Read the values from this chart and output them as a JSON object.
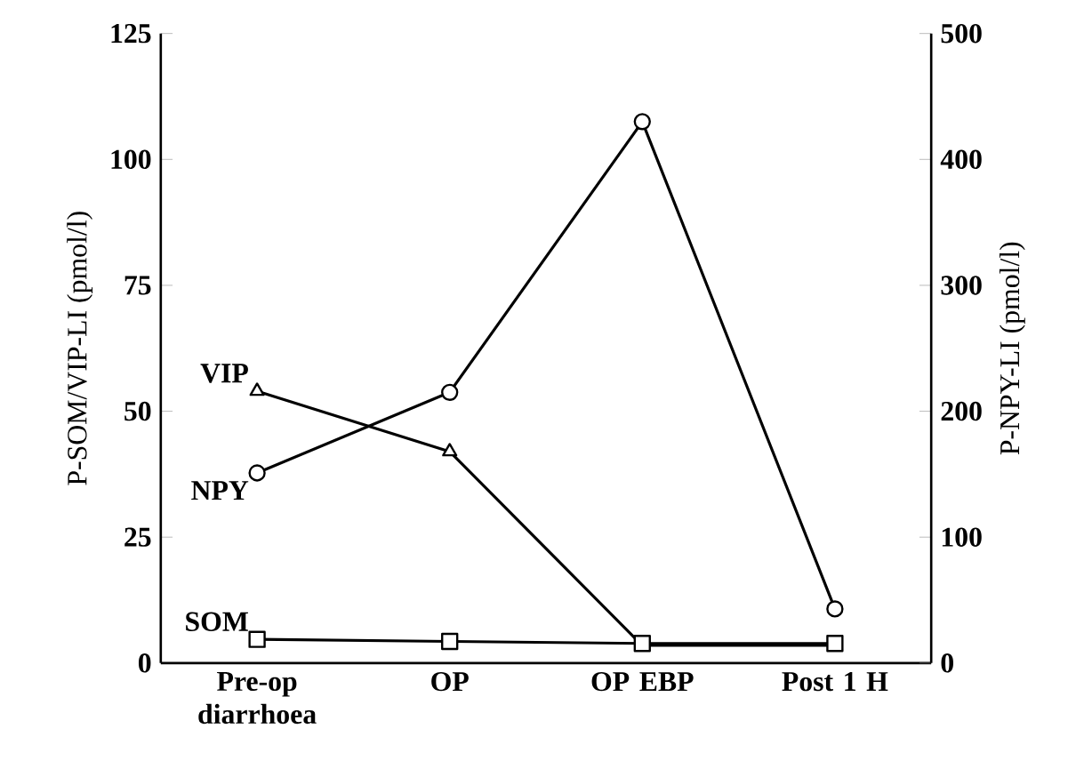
{
  "chart_data": {
    "type": "line",
    "xlabel": null,
    "ylabel": "P-SOM/VIP-LI (pmol/l)",
    "y2label": "P-NPY-LI (pmol/l)",
    "categories": [
      "Pre-op diarrhoea",
      "OP",
      "OP EBP",
      "Post 1 H"
    ],
    "ylim": [
      0,
      125
    ],
    "yticks": [
      0,
      25,
      50,
      75,
      100,
      125
    ],
    "y2lim": [
      0,
      500
    ],
    "y2ticks": [
      0,
      100,
      200,
      300,
      400,
      500
    ],
    "grid": false,
    "series": [
      {
        "name": "VIP",
        "color": "#000000",
        "marker": "triangle",
        "values": [
          54,
          42,
          3.5,
          3.5
        ]
      },
      {
        "name": "NPY",
        "color": "#000000",
        "marker": "circle",
        "axis": "y2",
        "values": [
          151,
          215,
          430,
          43
        ]
      },
      {
        "name": "SOM",
        "color": "#000000",
        "marker": "square",
        "values": [
          4.7,
          4.3,
          3.9,
          3.9
        ]
      }
    ]
  }
}
